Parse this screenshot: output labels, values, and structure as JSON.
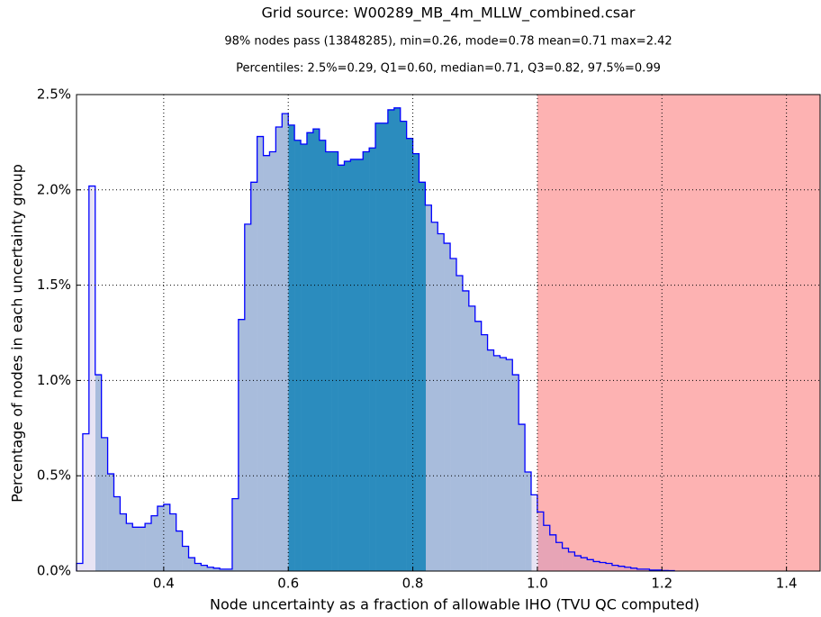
{
  "chart_data": {
    "type": "histogram",
    "title": "Grid source: W00289_MB_4m_MLLW_combined.csar",
    "subtitle": "98% nodes pass (13848285), min=0.26, mode=0.78 mean=0.71 max=2.42",
    "subtitle2": "Percentiles: 2.5%=0.29, Q1=0.60, median=0.71, Q3=0.82, 97.5%=0.99",
    "x_label": "Node uncertainty as a fraction of allowable IHO (TVU QC computed)",
    "y_label": "Percentage of nodes in each uncertainty group",
    "bins": [
      0.26,
      0.27,
      0.28,
      0.29,
      0.3,
      0.31,
      0.32,
      0.33,
      0.34,
      0.35,
      0.36,
      0.37,
      0.38,
      0.39,
      0.4,
      0.41,
      0.42,
      0.43,
      0.44,
      0.45,
      0.46,
      0.47,
      0.48,
      0.49,
      0.5,
      0.51,
      0.52,
      0.53,
      0.54,
      0.55,
      0.56,
      0.57,
      0.58,
      0.59,
      0.6,
      0.61,
      0.62,
      0.63,
      0.64,
      0.65,
      0.66,
      0.67,
      0.68,
      0.69,
      0.7,
      0.71,
      0.72,
      0.73,
      0.74,
      0.75,
      0.76,
      0.77,
      0.78,
      0.79,
      0.8,
      0.81,
      0.82,
      0.83,
      0.84,
      0.85,
      0.86,
      0.87,
      0.88,
      0.89,
      0.9,
      0.91,
      0.92,
      0.93,
      0.94,
      0.95,
      0.96,
      0.97,
      0.98,
      0.99,
      1.0,
      1.01,
      1.02,
      1.03,
      1.04,
      1.05,
      1.06,
      1.07,
      1.08,
      1.09,
      1.1,
      1.11,
      1.12,
      1.13,
      1.14,
      1.15,
      1.16,
      1.17,
      1.18,
      1.19,
      1.2,
      1.21,
      1.22
    ],
    "values": [
      0.04,
      0.72,
      2.02,
      1.03,
      0.7,
      0.51,
      0.39,
      0.3,
      0.25,
      0.23,
      0.23,
      0.25,
      0.29,
      0.34,
      0.35,
      0.3,
      0.21,
      0.13,
      0.07,
      0.04,
      0.03,
      0.02,
      0.015,
      0.01,
      0.01,
      0.38,
      1.32,
      1.82,
      2.04,
      2.28,
      2.18,
      2.2,
      2.33,
      2.4,
      2.34,
      2.26,
      2.24,
      2.3,
      2.32,
      2.26,
      2.2,
      2.2,
      2.13,
      2.15,
      2.16,
      2.16,
      2.2,
      2.22,
      2.35,
      2.35,
      2.42,
      2.43,
      2.36,
      2.27,
      2.19,
      2.04,
      1.92,
      1.83,
      1.77,
      1.72,
      1.64,
      1.55,
      1.47,
      1.39,
      1.31,
      1.24,
      1.16,
      1.13,
      1.12,
      1.11,
      1.03,
      0.77,
      0.52,
      0.4,
      0.31,
      0.24,
      0.19,
      0.15,
      0.12,
      0.1,
      0.08,
      0.07,
      0.06,
      0.05,
      0.045,
      0.04,
      0.03,
      0.025,
      0.02,
      0.015,
      0.01,
      0.01,
      0.005,
      0.005,
      0.003,
      0.002
    ],
    "outline_color": "#0000ff",
    "spans": [
      {
        "start": 0.26,
        "end": 0.29,
        "color": "#e8e4f4"
      },
      {
        "start": 0.29,
        "end": 0.6,
        "color": "#a8bcdc"
      },
      {
        "start": 0.6,
        "end": 0.82,
        "color": "#2b8cbe"
      },
      {
        "start": 0.82,
        "end": 0.99,
        "color": "#a8bcdc"
      },
      {
        "start": 0.99,
        "end": 1.0,
        "color": "#e8e4f4"
      },
      {
        "start": 1.0,
        "end": 1.454,
        "color": "#e7a4b6"
      }
    ],
    "background_span": {
      "start": 1.0,
      "end": 1.454,
      "color": "#fdb2b2"
    },
    "xlim": [
      0.26,
      1.454
    ],
    "ylim": [
      0,
      2.5
    ],
    "xticks": [
      0.4,
      0.6,
      0.8,
      {
        "value": 1.0,
        "label": "1.0"
      },
      1.2,
      1.4
    ],
    "yticks": [
      {
        "value": 0,
        "label": "0.0%"
      },
      {
        "value": 0.5,
        "label": "0.5%"
      },
      {
        "value": 1.0,
        "label": "1.0%"
      },
      {
        "value": 1.5,
        "label": "1.5%"
      },
      {
        "value": 2.0,
        "label": "2.0%"
      },
      {
        "value": 2.5,
        "label": "2.5%"
      }
    ],
    "grid": true
  }
}
